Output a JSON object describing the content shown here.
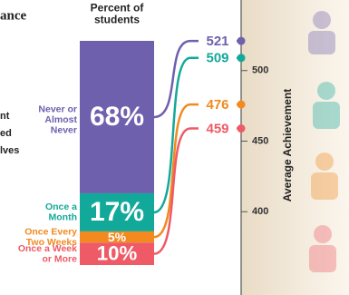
{
  "chart_data": {
    "type": "linked-stack",
    "title_fragment": "ance",
    "side_text": [
      "nt",
      "ed",
      "lves"
    ],
    "bar_title": "Percent of\nstudents",
    "categories": [
      "Never or\nAlmost\nNever",
      "Once a\nMonth",
      "Once Every\nTwo Weeks",
      "Once a Week\nor More"
    ],
    "colors": [
      "#6f60ae",
      "#13a99a",
      "#f28a1f",
      "#ee5a66"
    ],
    "series": [
      {
        "name": "Percent of students",
        "values": [
          68,
          17,
          5,
          10
        ],
        "value_labels": [
          "68%",
          "17%",
          "5%",
          "10%"
        ]
      },
      {
        "name": "Average Achievement",
        "axis": "y2",
        "values": [
          521,
          509,
          476,
          459
        ]
      }
    ],
    "ylim": [
      0,
      100
    ],
    "y2lim": [
      341,
      550
    ],
    "y2ticks": [
      400,
      450,
      500
    ],
    "y2label": "Average Achievement"
  }
}
